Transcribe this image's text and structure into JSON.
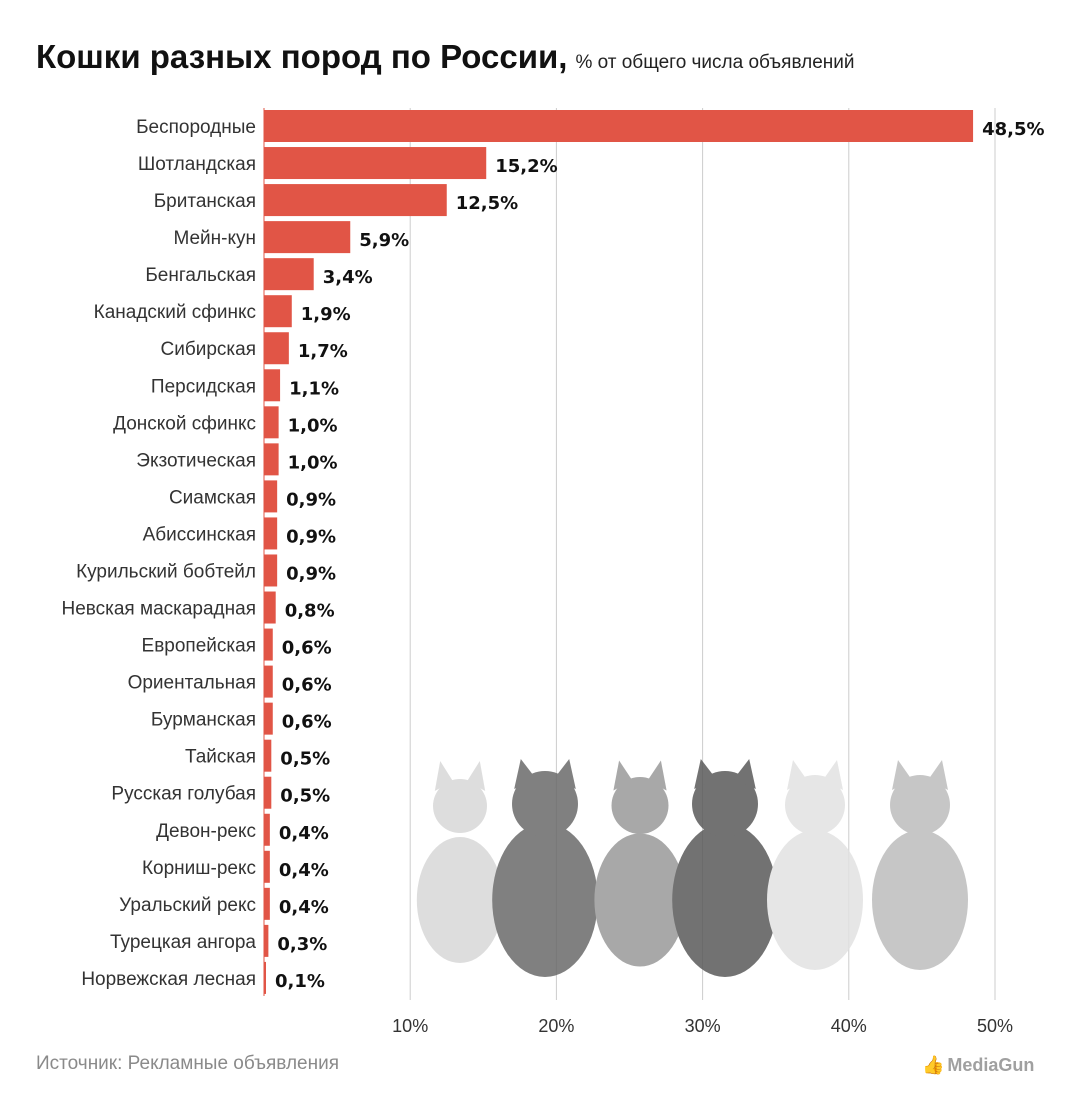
{
  "title": "Кошки разных пород по России,",
  "subtitle": "% от общего числа объявлений",
  "source": "Источник: Рекламные объявления",
  "logo": "MediaGun",
  "colors": {
    "bar": "#e15546",
    "grid": "#cccccc"
  },
  "chart_data": {
    "type": "bar",
    "orientation": "horizontal",
    "categories": [
      "Беспородные",
      "Шотландская",
      "Британская",
      "Мейн-кун",
      "Бенгальская",
      "Канадский сфинкс",
      "Сибирская",
      "Персидская",
      "Донской сфинкс",
      "Экзотическая",
      "Сиамская",
      "Абиссинская",
      "Курильский бобтейл",
      "Невская маскарадная",
      "Европейская",
      "Ориентальная",
      "Бурманская",
      "Тайская",
      "Русская голубая",
      "Девон-рекс",
      "Корниш-рекс",
      "Уральский рекс",
      "Турецкая ангора",
      "Норвежская лесная"
    ],
    "values": [
      48.5,
      15.2,
      12.5,
      5.9,
      3.4,
      1.9,
      1.7,
      1.1,
      1.0,
      1.0,
      0.9,
      0.9,
      0.9,
      0.8,
      0.6,
      0.6,
      0.6,
      0.5,
      0.5,
      0.4,
      0.4,
      0.4,
      0.3,
      0.1
    ],
    "labels": [
      "48,5%",
      "15,2%",
      "12,5%",
      "5,9%",
      "3,4%",
      "1,9%",
      "1,7%",
      "1,1%",
      "1,0%",
      "1,0%",
      "0,9%",
      "0,9%",
      "0,9%",
      "0,8%",
      "0,6%",
      "0,6%",
      "0,6%",
      "0,5%",
      "0,5%",
      "0,4%",
      "0,4%",
      "0,4%",
      "0,3%",
      "0,1%"
    ],
    "xticks": [
      10,
      20,
      30,
      40,
      50
    ],
    "xtick_labels": [
      "10%",
      "20%",
      "30%",
      "40%",
      "50%"
    ],
    "xlim": [
      0,
      50
    ],
    "grid": "vertical"
  }
}
